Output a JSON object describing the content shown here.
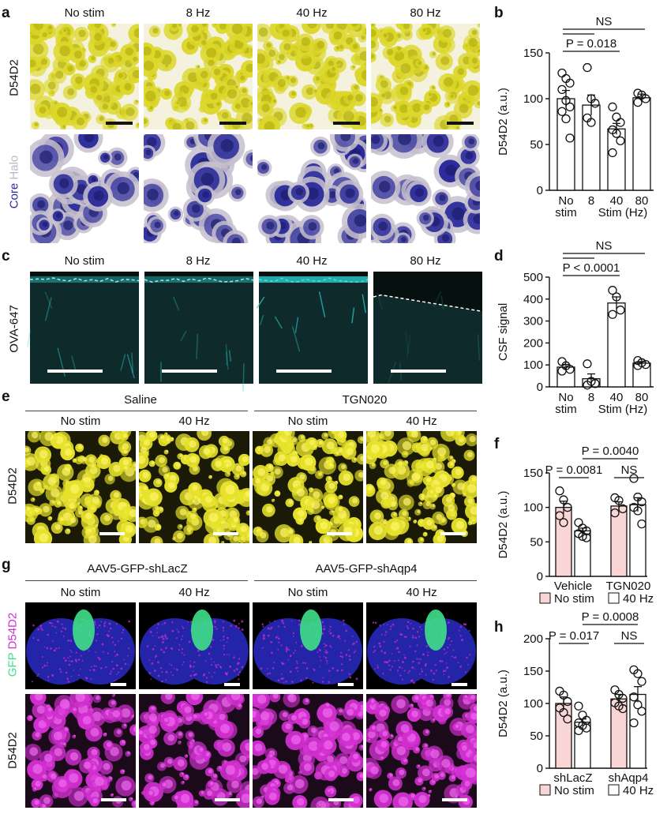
{
  "panel_labels": {
    "a": "a",
    "b": "b",
    "c": "c",
    "d": "d",
    "e": "e",
    "f": "f",
    "g": "g",
    "h": "h"
  },
  "panel_a": {
    "columns": [
      "No stim",
      "8 Hz",
      "40 Hz",
      "80 Hz"
    ],
    "row1_label": "D54D2",
    "row2_label_core": "Core",
    "row2_label_halo": "Halo"
  },
  "panel_c": {
    "columns": [
      "No stim",
      "8 Hz",
      "40 Hz",
      "80 Hz"
    ],
    "row_label": "OVA-647"
  },
  "panel_e": {
    "groups": [
      "Saline",
      "TGN020"
    ],
    "columns": [
      "No stim",
      "40 Hz",
      "No stim",
      "40 Hz"
    ],
    "row_label": "D54D2"
  },
  "panel_g": {
    "groups": [
      "AAV5-GFP-shLacZ",
      "AAV5-GFP-shAqp4"
    ],
    "columns": [
      "No stim",
      "40 Hz",
      "No stim",
      "40 Hz"
    ],
    "row1_label_gfp": "GFP",
    "row1_label_d54d2": "D54D2",
    "row2_label": "D54D2"
  },
  "colors": {
    "d54d2_yellow": "#e6e22a",
    "core_blue": "#2a2a9a",
    "halo_gray": "#bdb6c6",
    "ova_cyan": "#2ad0d0",
    "magenta": "#d22fd0",
    "gfp_green": "#3fe08a",
    "dapi_blue": "#2424a8",
    "no_stim_fill": "#f9d5d5"
  },
  "chart_data": [
    {
      "type": "bar",
      "panel": "b",
      "categories": [
        "No\nstim",
        "8",
        "40",
        "80"
      ],
      "values": [
        100,
        93,
        67,
        101
      ],
      "sem": [
        9,
        11,
        6,
        4
      ],
      "points": [
        [
          128,
          122,
          117,
          110,
          98,
          91,
          86,
          78,
          57
        ],
        [
          134,
          100,
          95,
          79,
          74
        ],
        [
          91,
          80,
          74,
          66,
          62,
          54,
          41
        ],
        [
          106,
          104,
          100,
          96
        ]
      ],
      "ylabel": "D54D2 (a.u.)",
      "xlabel": "Stim (Hz)",
      "ylim": [
        0,
        150
      ],
      "yticks": [
        0,
        50,
        100,
        150
      ],
      "annotations": [
        {
          "text": "NS",
          "from": 0,
          "to": 3
        },
        {
          "text": "P = 0.018",
          "from": 0,
          "to": 2
        }
      ],
      "bar_fill": "#ffffff"
    },
    {
      "type": "bar",
      "panel": "d",
      "categories": [
        "No\nstim",
        "8",
        "40",
        "80"
      ],
      "values": [
        90,
        37,
        382,
        108
      ],
      "sem": [
        12,
        22,
        28,
        7
      ],
      "points": [
        [
          115,
          96,
          80,
          72
        ],
        [
          105,
          25,
          15,
          8
        ],
        [
          440,
          410,
          350,
          330
        ],
        [
          120,
          110,
          102,
          97
        ]
      ],
      "ylabel": "CSF signal",
      "xlabel": "Stim (Hz)",
      "ylim": [
        0,
        500
      ],
      "yticks": [
        0,
        100,
        200,
        300,
        400,
        500
      ],
      "annotations": [
        {
          "text": "NS",
          "from": 0,
          "to": 3
        },
        {
          "text": "P < 0.0001",
          "from": 0,
          "to": 2
        }
      ],
      "bar_fill": "#ffffff"
    },
    {
      "type": "bar",
      "panel": "f",
      "groups": [
        "Vehicle",
        "TGN020"
      ],
      "series": [
        {
          "name": "No stim",
          "values": [
            100,
            102
          ]
        },
        {
          "name": "40 Hz",
          "values": [
            66,
            104
          ]
        }
      ],
      "sem": [
        [
          9,
          6
        ],
        [
          4,
          10
        ]
      ],
      "points": [
        [
          [
            124,
            111,
            100,
            88,
            78
          ],
          [
            78,
            70,
            66,
            62,
            58,
            56
          ]
        ],
        [
          [
            114,
            110,
            98,
            92
          ],
          [
            142,
            115,
            108,
            100,
            95,
            76
          ]
        ]
      ],
      "ylabel": "D54D2 (a.u.)",
      "ylim": [
        0,
        150
      ],
      "yticks": [
        0,
        50,
        100,
        150
      ],
      "annotations": [
        {
          "text": "P = 0.0081",
          "pair": "vehicle"
        },
        {
          "text": "NS",
          "pair": "tgn020"
        },
        {
          "text": "P = 0.0040",
          "pair": "cross"
        }
      ],
      "legend": [
        "No stim",
        "40 Hz"
      ]
    },
    {
      "type": "bar",
      "panel": "h",
      "groups": [
        "shLacZ",
        "shAqp4"
      ],
      "series": [
        {
          "name": "No stim",
          "values": [
            100,
            107
          ]
        },
        {
          "name": "40 Hz",
          "values": [
            71,
            114
          ]
        }
      ],
      "sem": [
        [
          10,
          7
        ],
        [
          5,
          12
        ]
      ],
      "points": [
        [
          [
            119,
            113,
            103,
            93,
            86,
            76
          ],
          [
            96,
            82,
            74,
            70,
            66,
            62,
            58
          ]
        ],
        [
          [
            121,
            114,
            108,
            101,
            96,
            92
          ],
          [
            152,
            146,
            134,
            110,
            98,
            88,
            70
          ]
        ]
      ],
      "ylabel": "D54D2 (a.u.)",
      "ylim": [
        0,
        200
      ],
      "yticks": [
        0,
        50,
        100,
        150,
        200
      ],
      "annotations": [
        {
          "text": "P = 0.017",
          "pair": "shlacz"
        },
        {
          "text": "NS",
          "pair": "shaqp4"
        },
        {
          "text": "P = 0.0008",
          "pair": "cross"
        }
      ],
      "legend": [
        "No stim",
        "40 Hz"
      ]
    }
  ]
}
